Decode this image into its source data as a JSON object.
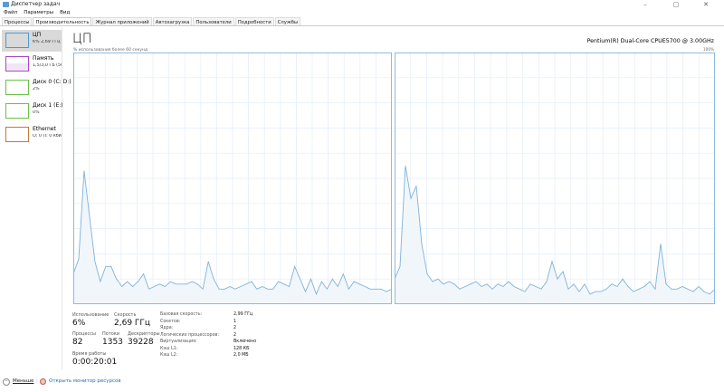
{
  "window": {
    "title": "Диспетчер задач",
    "minimize": "–",
    "maximize": "▢",
    "close": "✕"
  },
  "menu": [
    "Файл",
    "Параметры",
    "Вид"
  ],
  "tabs": [
    "Процессы",
    "Производительность",
    "Журнал приложений",
    "Автозагрузка",
    "Пользователи",
    "Подробности",
    "Службы"
  ],
  "active_tab": 1,
  "sidebar": [
    {
      "name": "ЦП",
      "value": "6% 2,69 ГГц",
      "color": "#4a9bd5"
    },
    {
      "name": "Память",
      "value": "1,5/3,0 ГБ (50%)",
      "color": "#a54dc4"
    },
    {
      "name": "Диск 0 (C: D:)",
      "value": "2%",
      "color": "#6cc04a"
    },
    {
      "name": "Диск 1 (E:)",
      "value": "0%",
      "color": "#6cc04a"
    },
    {
      "name": "Ethernet",
      "value": "О: 0 П: 0 кбит/с",
      "color": "#c77a30"
    }
  ],
  "main": {
    "title": "ЦП",
    "cpu_name": "Pentium(R) Dual-Core CPUE5700 @ 3.00GHz",
    "graph_label": "% использования более 60 секунд",
    "max_label": "100%",
    "core_history_percent": [
      [
        12,
        18,
        53,
        35,
        17,
        9,
        15,
        15,
        10,
        7,
        9,
        7,
        9,
        12,
        6,
        7,
        8,
        7,
        9,
        8,
        8,
        8,
        9,
        8,
        6,
        17,
        10,
        6,
        6,
        7,
        6,
        7,
        8,
        9,
        6,
        7,
        6,
        6,
        9,
        8,
        7,
        15,
        10,
        5,
        10,
        4,
        9,
        6,
        10,
        7,
        12,
        6,
        9,
        8,
        7,
        6,
        6,
        6,
        5,
        6
      ],
      [
        10,
        15,
        55,
        42,
        47,
        24,
        12,
        9,
        10,
        8,
        9,
        8,
        6,
        7,
        8,
        9,
        7,
        8,
        6,
        8,
        7,
        9,
        7,
        6,
        5,
        8,
        7,
        6,
        9,
        17,
        10,
        13,
        6,
        8,
        5,
        8,
        4,
        5,
        5,
        6,
        8,
        7,
        10,
        7,
        5,
        6,
        7,
        9,
        6,
        24,
        8,
        6,
        6,
        7,
        6,
        5,
        7,
        5,
        4,
        6
      ]
    ],
    "stats": {
      "usage_label": "Использование",
      "usage": "6%",
      "speed_label": "Скорость",
      "speed": "2,69 ГГц",
      "processes_label": "Процессы",
      "processes": "82",
      "threads_label": "Потоки",
      "threads": "1353",
      "handles_label": "Дескрипторы",
      "handles": "39228",
      "uptime_label": "Время работы",
      "uptime": "0:00:20:01"
    },
    "specs": [
      {
        "k": "Базовая скорость:",
        "v": "2,99 ГГц"
      },
      {
        "k": "Сокетов:",
        "v": "1"
      },
      {
        "k": "Ядра:",
        "v": "2"
      },
      {
        "k": "Логических процессоров:",
        "v": "2"
      },
      {
        "k": "Виртуализация:",
        "v": "Включено"
      },
      {
        "k": "Кэш L1:",
        "v": "128 КБ"
      },
      {
        "k": "Кэш L2:",
        "v": "2,0 МБ"
      }
    ]
  },
  "footer": {
    "less": "Меньше",
    "monitor": "Открыть монитор ресурсов"
  }
}
